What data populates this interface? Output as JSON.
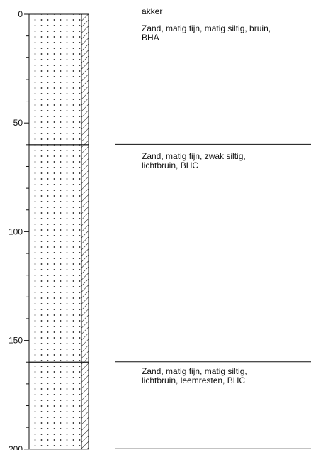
{
  "depth_axis": {
    "ticks": [
      0,
      50,
      100,
      150,
      200
    ],
    "minor_ticks": [
      10,
      20,
      30,
      40,
      60,
      70,
      80,
      90,
      110,
      120,
      130,
      140,
      160,
      170,
      180,
      190
    ],
    "range": [
      0,
      200
    ]
  },
  "surface_note": "akker",
  "layers": [
    {
      "top": 0,
      "bottom": 60,
      "description_lines": [
        "Zand, matig fijn, matig siltig, bruin,",
        "BHA"
      ]
    },
    {
      "top": 60,
      "bottom": 160,
      "description_lines": [
        "Zand, matig fijn, zwak siltig,",
        "lichtbruin, BHC"
      ]
    },
    {
      "top": 160,
      "bottom": 200,
      "description_lines": [
        "Zand, matig fijn, matig siltig,",
        "lichtbruin, leemresten, BHC"
      ]
    }
  ],
  "legend_patterns": {
    "lithology": "sand-dots",
    "admixture": "silt-hatch"
  },
  "colors": {
    "line": "#111111",
    "background": "#ffffff"
  }
}
